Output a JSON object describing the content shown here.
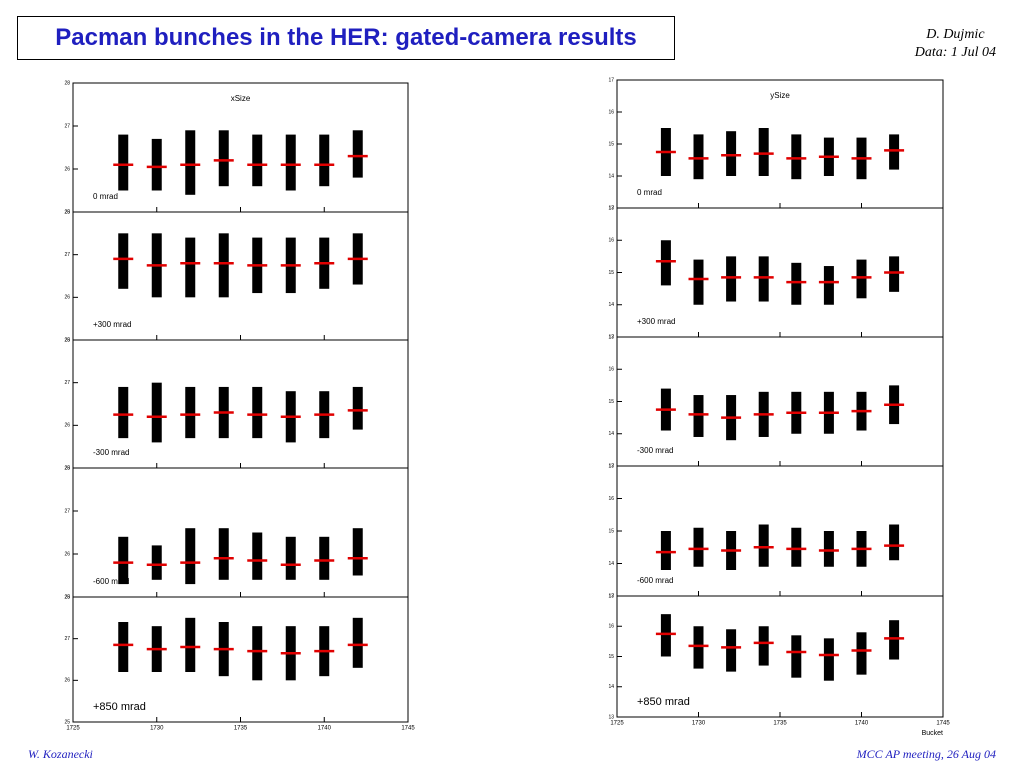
{
  "header": {
    "title": "Pacman bunches in the HER: gated-camera results",
    "author": "D. Dujmic",
    "date": "Data: 1 Jul 04"
  },
  "footer": {
    "left": "W. Kozanecki",
    "right": "MCC AP meeting, 26 Aug 04"
  },
  "chart_data": [
    {
      "type": "strip",
      "title": "xSize",
      "xlim": [
        1725,
        1745
      ],
      "xticks": [
        1725,
        1730,
        1735,
        1740,
        1745
      ],
      "x": [
        1728,
        1730,
        1732,
        1734,
        1736,
        1738,
        1740,
        1742
      ],
      "panels": [
        {
          "label": "0 mrad",
          "ylim": [
            25,
            28
          ],
          "yticks": [
            25,
            26,
            27,
            28
          ],
          "means": [
            26.1,
            26.05,
            26.1,
            26.2,
            26.1,
            26.1,
            26.1,
            26.3
          ],
          "lows": [
            25.5,
            25.5,
            25.4,
            25.6,
            25.6,
            25.5,
            25.6,
            25.8
          ],
          "highs": [
            26.8,
            26.7,
            26.9,
            26.9,
            26.8,
            26.8,
            26.8,
            26.9
          ]
        },
        {
          "label": "+300 mrad",
          "ylim": [
            25,
            28
          ],
          "yticks": [
            25,
            26,
            27,
            28
          ],
          "means": [
            26.9,
            26.75,
            26.8,
            26.8,
            26.75,
            26.75,
            26.8,
            26.9
          ],
          "lows": [
            26.2,
            26.0,
            26.0,
            26.0,
            26.1,
            26.1,
            26.2,
            26.3
          ],
          "highs": [
            27.5,
            27.5,
            27.4,
            27.5,
            27.4,
            27.4,
            27.4,
            27.5
          ]
        },
        {
          "label": "-300 mrad",
          "ylim": [
            25,
            28
          ],
          "yticks": [
            25,
            26,
            27,
            28
          ],
          "means": [
            26.25,
            26.2,
            26.25,
            26.3,
            26.25,
            26.2,
            26.25,
            26.35
          ],
          "lows": [
            25.7,
            25.6,
            25.7,
            25.7,
            25.7,
            25.6,
            25.7,
            25.9
          ],
          "highs": [
            26.9,
            27.0,
            26.9,
            26.9,
            26.9,
            26.8,
            26.8,
            26.9
          ]
        },
        {
          "label": "-600 mrad",
          "ylim": [
            25,
            28
          ],
          "yticks": [
            25,
            26,
            27,
            28
          ],
          "means": [
            25.8,
            25.75,
            25.8,
            25.9,
            25.85,
            25.75,
            25.85,
            25.9
          ],
          "lows": [
            25.3,
            25.4,
            25.3,
            25.4,
            25.4,
            25.4,
            25.4,
            25.5
          ],
          "highs": [
            26.4,
            26.2,
            26.6,
            26.6,
            26.5,
            26.4,
            26.4,
            26.6
          ]
        },
        {
          "label": "+850 mrad",
          "ylim": [
            25,
            28
          ],
          "yticks": [
            25,
            26,
            27,
            28
          ],
          "means": [
            26.85,
            26.75,
            26.8,
            26.75,
            26.7,
            26.65,
            26.7,
            26.85
          ],
          "lows": [
            26.2,
            26.2,
            26.2,
            26.1,
            26.0,
            26.0,
            26.1,
            26.3
          ],
          "highs": [
            27.4,
            27.3,
            27.5,
            27.4,
            27.3,
            27.3,
            27.3,
            27.5
          ]
        }
      ]
    },
    {
      "type": "strip",
      "title": "ySize",
      "xlabel": "Bucket",
      "xlim": [
        1725,
        1745
      ],
      "xticks": [
        1725,
        1730,
        1735,
        1740,
        1745
      ],
      "x": [
        1728,
        1730,
        1732,
        1734,
        1736,
        1738,
        1740,
        1742
      ],
      "panels": [
        {
          "label": "0 mrad",
          "ylim": [
            13,
            17
          ],
          "yticks": [
            13,
            14,
            15,
            16,
            17
          ],
          "means": [
            14.75,
            14.55,
            14.65,
            14.7,
            14.55,
            14.6,
            14.55,
            14.8
          ],
          "lows": [
            14.0,
            13.9,
            14.0,
            14.0,
            13.9,
            14.0,
            13.9,
            14.2
          ],
          "highs": [
            15.5,
            15.3,
            15.4,
            15.5,
            15.3,
            15.2,
            15.2,
            15.3
          ]
        },
        {
          "label": "+300 mrad",
          "ylim": [
            13,
            17
          ],
          "yticks": [
            13,
            14,
            15,
            16,
            17
          ],
          "means": [
            15.35,
            14.8,
            14.85,
            14.85,
            14.7,
            14.7,
            14.85,
            15.0
          ],
          "lows": [
            14.6,
            14.0,
            14.1,
            14.1,
            14.0,
            14.0,
            14.2,
            14.4
          ],
          "highs": [
            16.0,
            15.4,
            15.5,
            15.5,
            15.3,
            15.2,
            15.4,
            15.5
          ]
        },
        {
          "label": "-300 mrad",
          "ylim": [
            13,
            17
          ],
          "yticks": [
            13,
            14,
            15,
            16,
            17
          ],
          "means": [
            14.75,
            14.6,
            14.5,
            14.6,
            14.65,
            14.65,
            14.7,
            14.9
          ],
          "lows": [
            14.1,
            13.9,
            13.8,
            13.9,
            14.0,
            14.0,
            14.1,
            14.3
          ],
          "highs": [
            15.4,
            15.2,
            15.2,
            15.3,
            15.3,
            15.3,
            15.3,
            15.5
          ]
        },
        {
          "label": "-600 mrad",
          "ylim": [
            13,
            17
          ],
          "yticks": [
            13,
            14,
            15,
            16,
            17
          ],
          "means": [
            14.35,
            14.45,
            14.4,
            14.5,
            14.45,
            14.4,
            14.45,
            14.55
          ],
          "lows": [
            13.8,
            13.9,
            13.8,
            13.9,
            13.9,
            13.9,
            13.9,
            14.1
          ],
          "highs": [
            15.0,
            15.1,
            15.0,
            15.2,
            15.1,
            15.0,
            15.0,
            15.2
          ]
        },
        {
          "label": "+850 mrad",
          "ylim": [
            13,
            17
          ],
          "yticks": [
            13,
            14,
            15,
            16,
            17
          ],
          "means": [
            15.75,
            15.35,
            15.3,
            15.45,
            15.15,
            15.05,
            15.2,
            15.6
          ],
          "lows": [
            15.0,
            14.6,
            14.5,
            14.7,
            14.3,
            14.2,
            14.4,
            14.9
          ],
          "highs": [
            16.4,
            16.0,
            15.9,
            16.0,
            15.7,
            15.6,
            15.8,
            16.2
          ]
        }
      ]
    }
  ]
}
